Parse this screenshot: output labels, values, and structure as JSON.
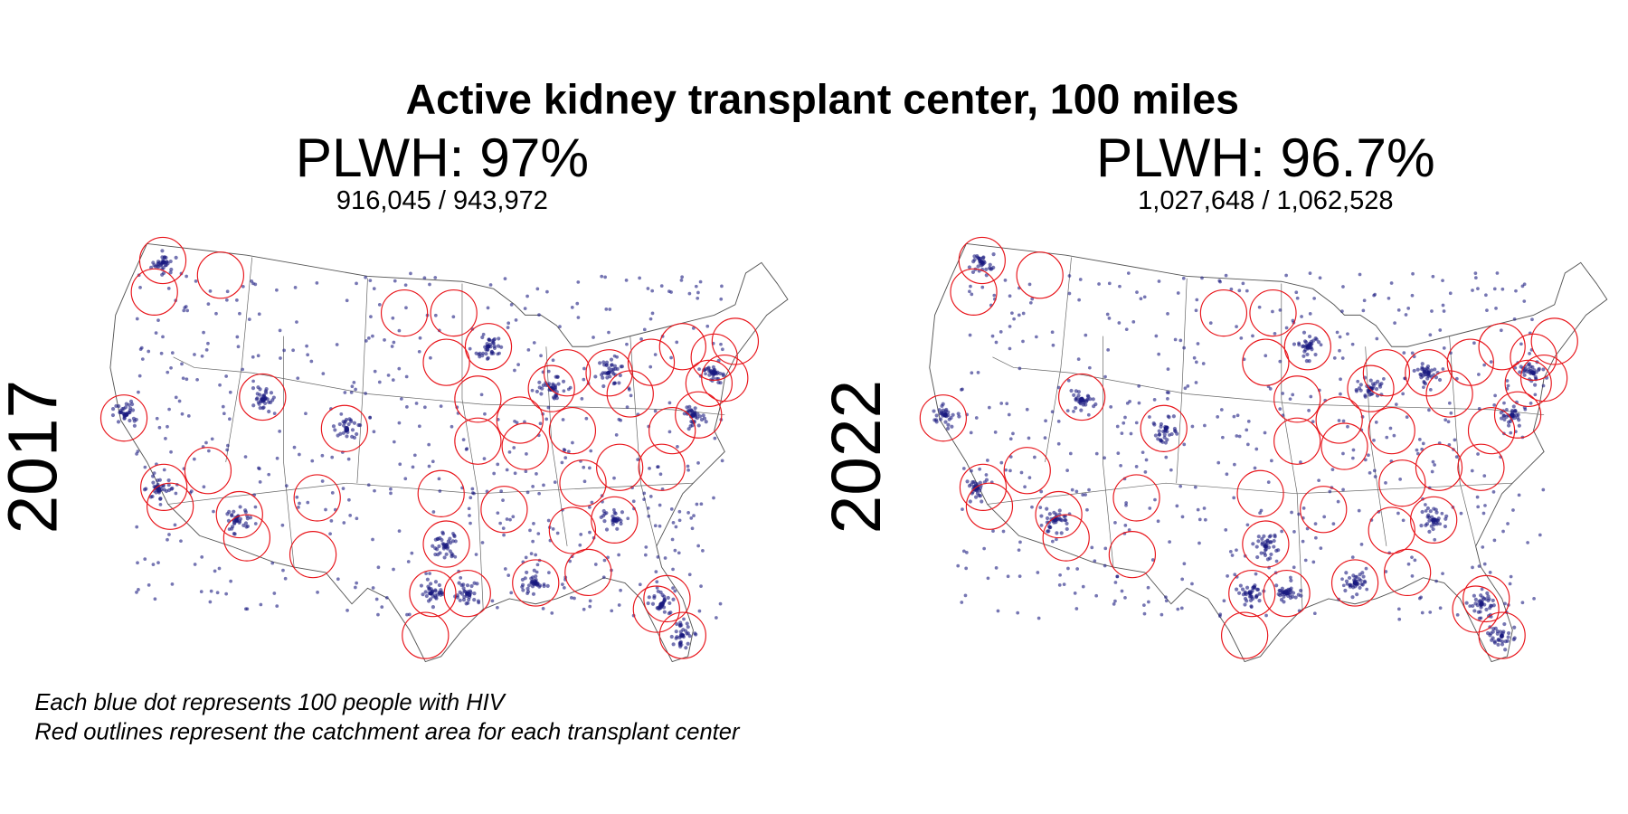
{
  "title": "Active kidney transplant center, 100 miles",
  "panels": [
    {
      "year": "2017",
      "headline": "PLWH: 97%",
      "counts": "916,045 / 943,972"
    },
    {
      "year": "2022",
      "headline": "PLWH: 96.7%",
      "counts": "1,027,648 / 1,062,528"
    }
  ],
  "notes": [
    "Each blue dot represents 100 people with HIV",
    "Red outlines represent the catchment area for each transplant center"
  ]
}
